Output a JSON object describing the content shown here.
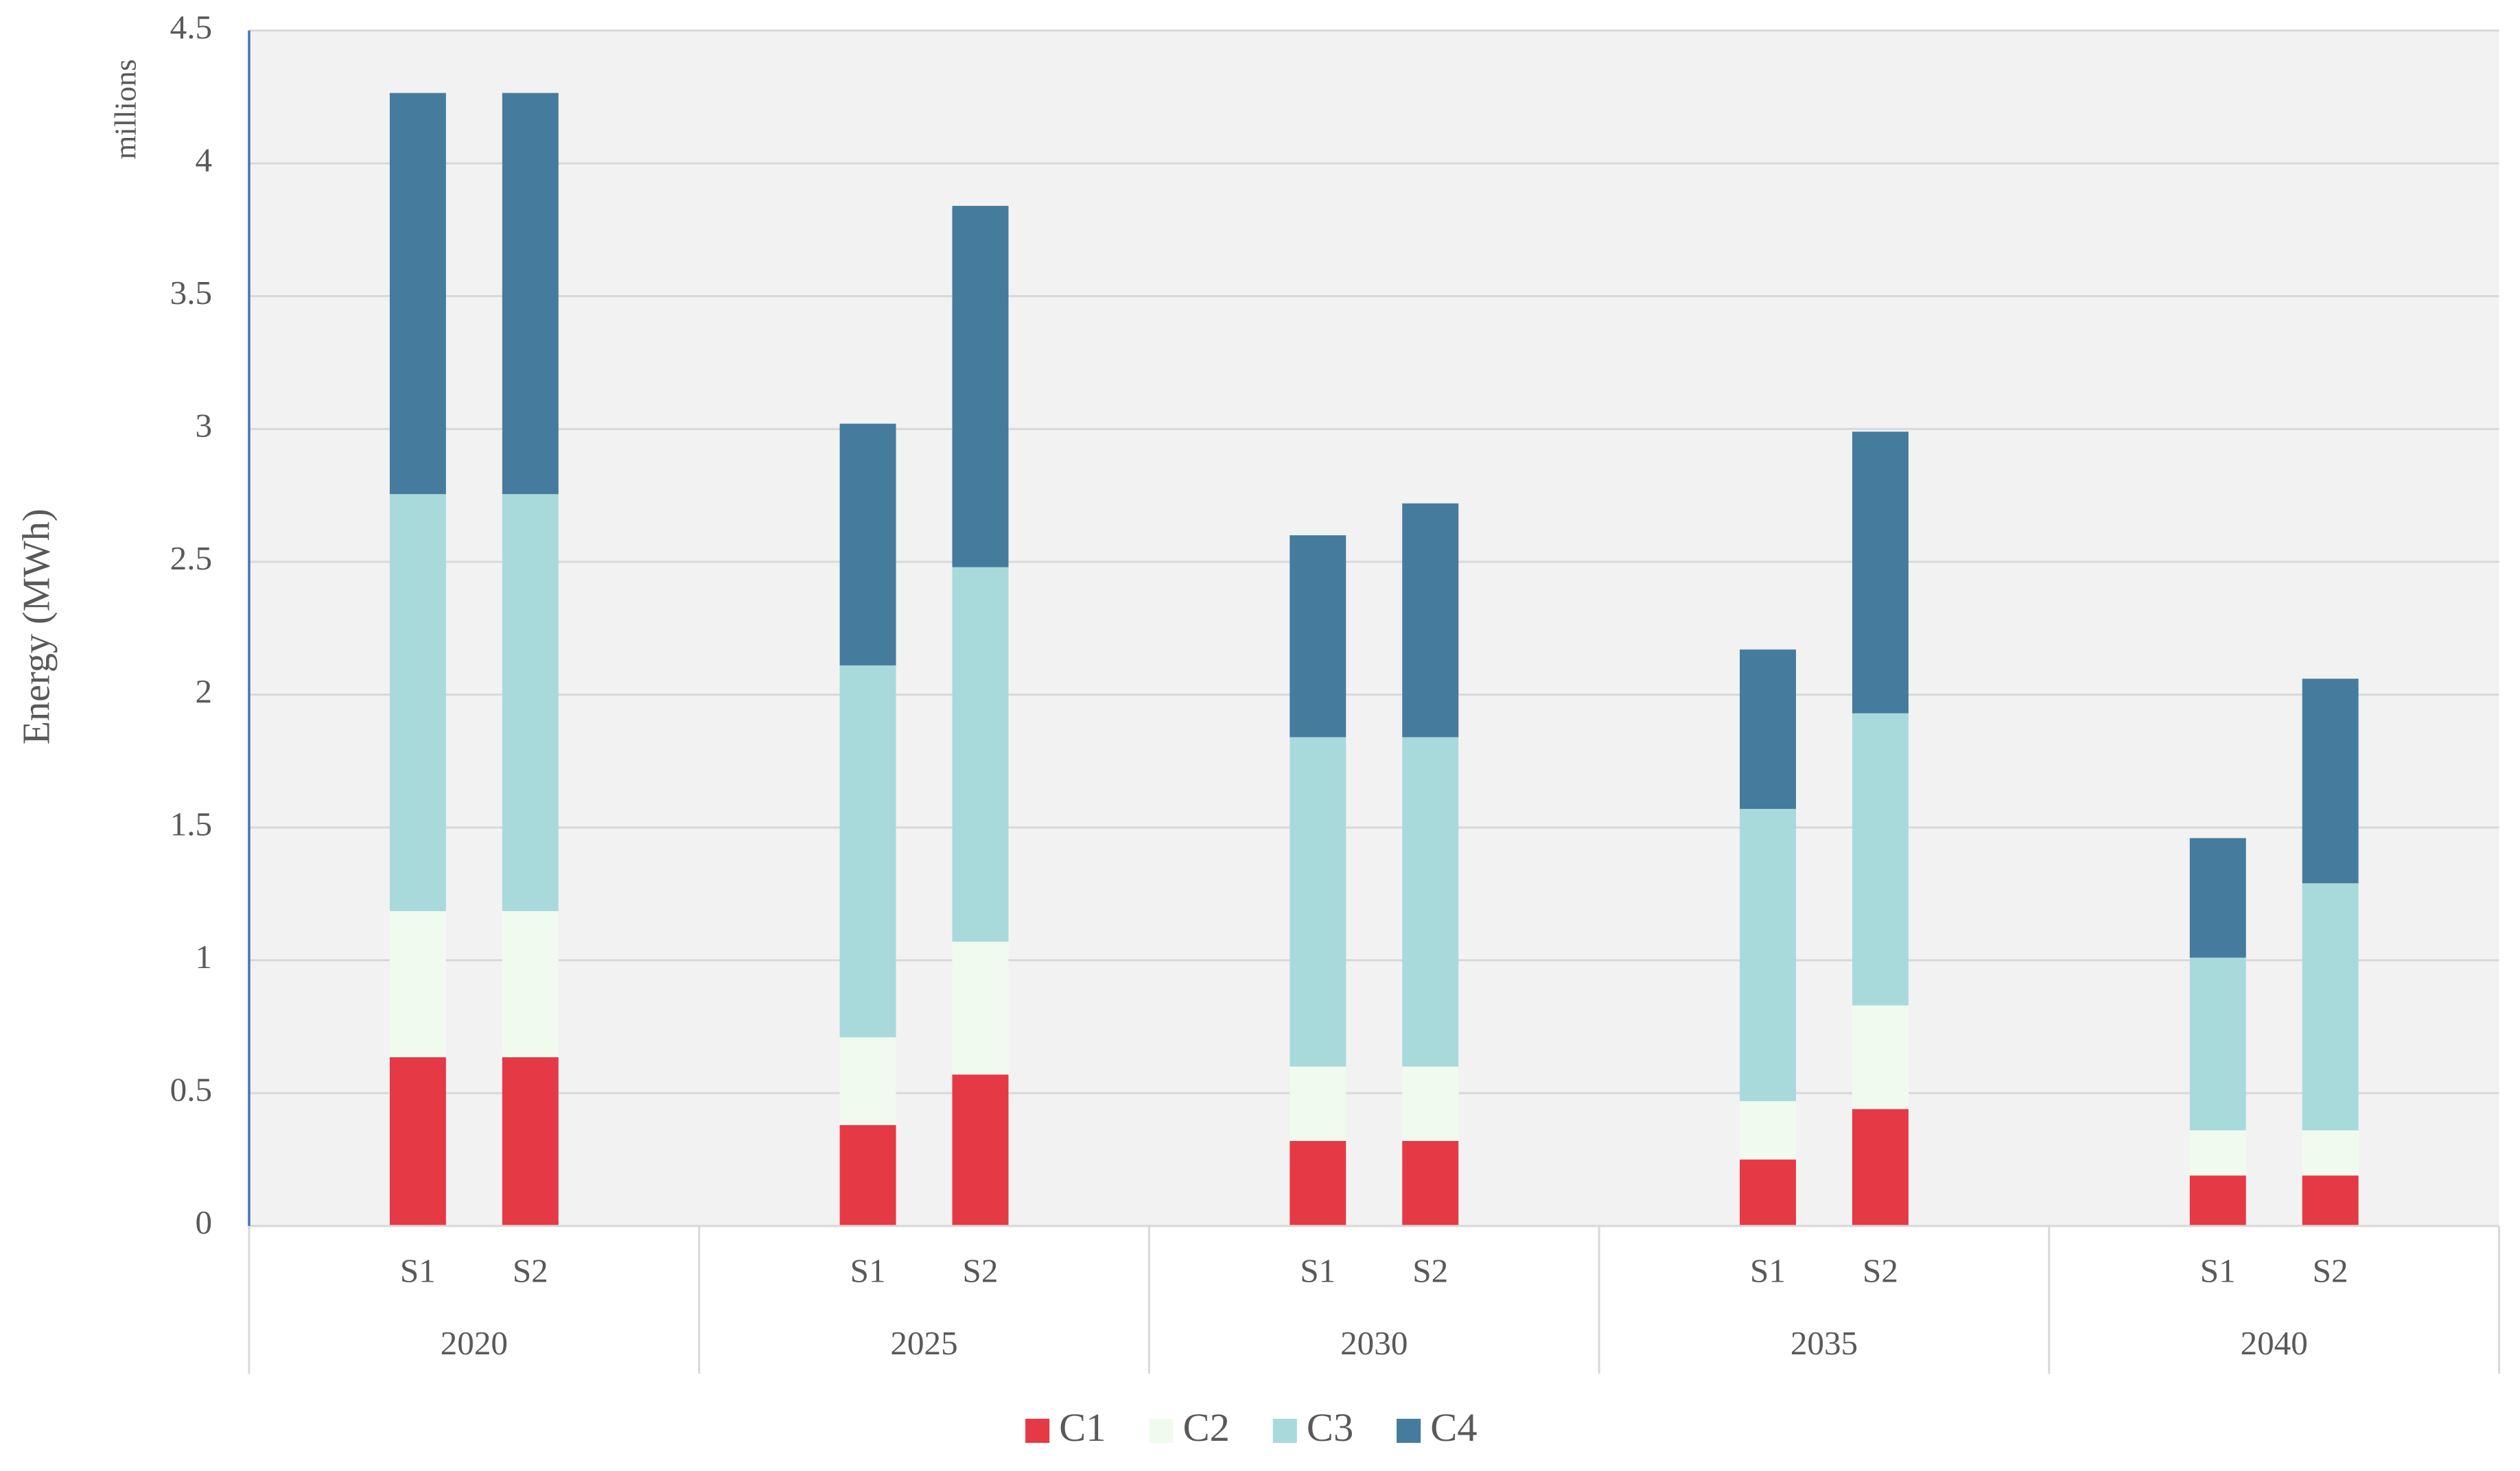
{
  "chart_data": {
    "type": "stacked-bar",
    "y_label": "Energy (MWh)",
    "unit_label": "millions",
    "groups": [
      "2020",
      "2025",
      "2030",
      "2035",
      "2040"
    ],
    "categories": [
      "S1",
      "S2",
      "S1",
      "S2",
      "S1",
      "S2",
      "S1",
      "S2",
      "S1",
      "S2"
    ],
    "series": [
      {
        "name": "C1",
        "color": "#e63946",
        "values": [
          0.635,
          0.635,
          0.38,
          0.57,
          0.32,
          0.32,
          0.25,
          0.44,
          0.19,
          0.19
        ]
      },
      {
        "name": "C2",
        "color": "#f1faee",
        "values": [
          0.55,
          0.55,
          0.33,
          0.5,
          0.28,
          0.28,
          0.22,
          0.39,
          0.17,
          0.17
        ]
      },
      {
        "name": "C3",
        "color": "#a8dadc",
        "values": [
          1.57,
          1.57,
          1.4,
          1.41,
          1.24,
          1.24,
          1.1,
          1.1,
          0.65,
          0.93
        ]
      },
      {
        "name": "C4",
        "color": "#457b9d",
        "values": [
          1.51,
          1.51,
          0.91,
          1.36,
          0.76,
          0.88,
          0.6,
          1.06,
          0.45,
          0.77
        ]
      }
    ],
    "ylim": [
      0,
      4.5
    ],
    "yticks": [
      0,
      0.5,
      1,
      1.5,
      2,
      2.5,
      3,
      3.5,
      4,
      4.5
    ],
    "grid": true,
    "legend": "bottom"
  }
}
